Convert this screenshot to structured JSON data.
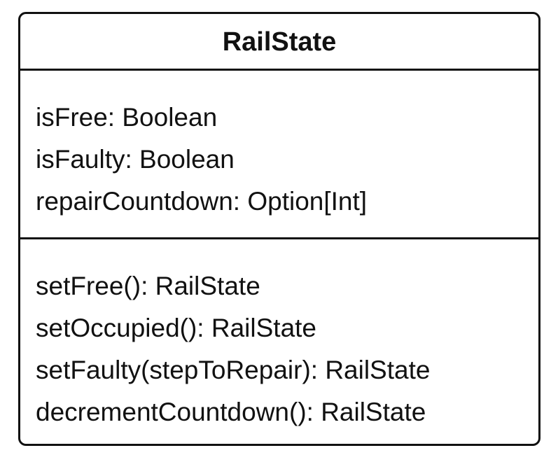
{
  "class_box": {
    "name": "RailState",
    "attributes": [
      "isFree: Boolean",
      "isFaulty: Boolean",
      "repairCountdown: Option[Int]"
    ],
    "methods": [
      "setFree(): RailState",
      "setOccupied(): RailState",
      "setFaulty(stepToRepair): RailState",
      "decrementCountdown(): RailState"
    ]
  }
}
